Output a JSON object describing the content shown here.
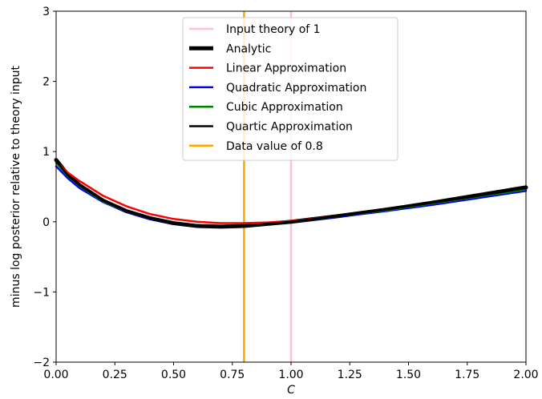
{
  "chart_data": {
    "type": "line",
    "xlabel": "C",
    "ylabel": "minus log posterior relative to theory input",
    "xlim": [
      0,
      2
    ],
    "ylim": [
      -2,
      3
    ],
    "xticks": [
      "0.00",
      "0.25",
      "0.50",
      "0.75",
      "1.00",
      "1.25",
      "1.50",
      "1.75",
      "2.00"
    ],
    "xtick_values": [
      0,
      0.25,
      0.5,
      0.75,
      1.0,
      1.25,
      1.5,
      1.75,
      2.0
    ],
    "yticks": [
      "−2",
      "−1",
      "0",
      "1",
      "2",
      "3"
    ],
    "ytick_values": [
      -2,
      -1,
      0,
      1,
      2,
      3
    ],
    "grid": false,
    "legend_position": "top-center",
    "vertical_lines": [
      {
        "name": "Input theory of 1",
        "x": 1.0,
        "color": "#ffc0cb"
      },
      {
        "name": "Data value of 0.8",
        "x": 0.8,
        "color": "#ffa500"
      }
    ],
    "series": [
      {
        "name": "Analytic",
        "color": "#000000",
        "width": "thick",
        "x": [
          0,
          0.05,
          0.1,
          0.2,
          0.3,
          0.4,
          0.5,
          0.6,
          0.7,
          0.8,
          0.9,
          1.0,
          1.2,
          1.4,
          1.6,
          1.8,
          2.0
        ],
        "y": [
          0.88,
          0.67,
          0.52,
          0.3,
          0.15,
          0.05,
          -0.02,
          -0.06,
          -0.07,
          -0.06,
          -0.03,
          0.0,
          0.08,
          0.17,
          0.27,
          0.38,
          0.49
        ]
      },
      {
        "name": "Linear Approximation",
        "color": "#ff0000",
        "width": "normal",
        "x": [
          0,
          0.05,
          0.1,
          0.2,
          0.3,
          0.4,
          0.5,
          0.6,
          0.7,
          0.8,
          0.9,
          1.0,
          1.2,
          1.4,
          1.6,
          1.8,
          2.0
        ],
        "y": [
          0.86,
          0.7,
          0.58,
          0.37,
          0.22,
          0.11,
          0.04,
          0.0,
          -0.02,
          -0.02,
          -0.01,
          0.01,
          0.08,
          0.16,
          0.25,
          0.35,
          0.45
        ]
      },
      {
        "name": "Quadratic Approximation",
        "color": "#0000ff",
        "width": "normal",
        "x": [
          0,
          0.05,
          0.1,
          0.2,
          0.3,
          0.4,
          0.5,
          0.6,
          0.7,
          0.8,
          0.9,
          1.0,
          1.2,
          1.4,
          1.6,
          1.8,
          2.0
        ],
        "y": [
          0.79,
          0.62,
          0.48,
          0.28,
          0.14,
          0.04,
          -0.02,
          -0.06,
          -0.07,
          -0.06,
          -0.03,
          0.0,
          0.07,
          0.15,
          0.24,
          0.34,
          0.44
        ]
      },
      {
        "name": "Cubic Approximation",
        "color": "#008000",
        "width": "normal",
        "x": [
          0,
          0.05,
          0.1,
          0.2,
          0.3,
          0.4,
          0.5,
          0.6,
          0.7,
          0.8,
          0.9,
          1.0,
          1.2,
          1.4,
          1.6,
          1.8,
          2.0
        ],
        "y": [
          0.84,
          0.65,
          0.51,
          0.29,
          0.15,
          0.05,
          -0.02,
          -0.06,
          -0.07,
          -0.06,
          -0.03,
          0.0,
          0.08,
          0.16,
          0.26,
          0.36,
          0.46
        ]
      },
      {
        "name": "Quartic Approximation",
        "color": "#000000",
        "width": "normal",
        "x": [
          0,
          0.05,
          0.1,
          0.2,
          0.3,
          0.4,
          0.5,
          0.6,
          0.7,
          0.8,
          0.9,
          1.0,
          1.2,
          1.4,
          1.6,
          1.8,
          2.0
        ],
        "y": [
          0.87,
          0.66,
          0.52,
          0.3,
          0.15,
          0.05,
          -0.02,
          -0.06,
          -0.07,
          -0.06,
          -0.03,
          0.0,
          0.08,
          0.17,
          0.27,
          0.37,
          0.48
        ]
      }
    ],
    "legend": [
      {
        "label": "Input theory of 1",
        "color": "#ffc0cb",
        "width": "normal"
      },
      {
        "label": "Analytic",
        "color": "#000000",
        "width": "thick"
      },
      {
        "label": "Linear Approximation",
        "color": "#ff0000",
        "width": "normal"
      },
      {
        "label": "Quadratic Approximation",
        "color": "#0000ff",
        "width": "normal"
      },
      {
        "label": "Cubic Approximation",
        "color": "#008000",
        "width": "normal"
      },
      {
        "label": "Quartic Approximation",
        "color": "#000000",
        "width": "normal"
      },
      {
        "label": "Data value of 0.8",
        "color": "#ffa500",
        "width": "normal"
      }
    ]
  }
}
